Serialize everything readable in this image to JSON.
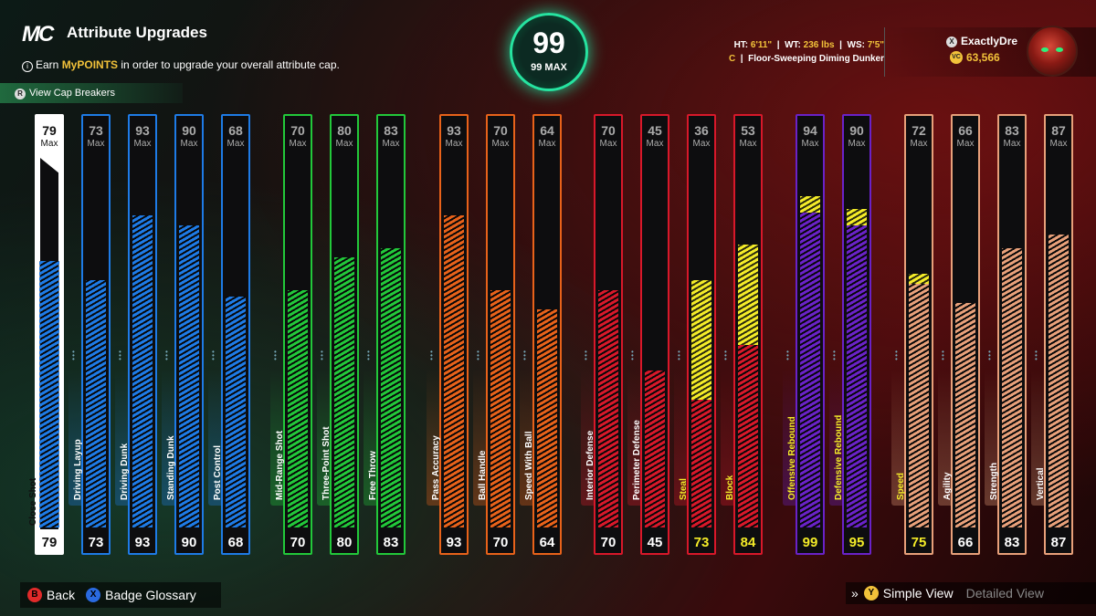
{
  "header": {
    "logo": "MC",
    "title": "Attribute Upgrades",
    "subtitle_pre": "Earn ",
    "subtitle_hl": "MyPOINTS",
    "subtitle_post": " in order to upgrade your overall attribute cap.",
    "cap_breakers": "View Cap Breakers"
  },
  "overall": {
    "value": "99",
    "max_label": "99 MAX"
  },
  "player": {
    "ht_label": "HT:",
    "ht": "6'11\"",
    "wt_label": "WT:",
    "wt": "236 lbs",
    "ws_label": "WS:",
    "ws": "7'5\"",
    "position": "C",
    "archetype": "Floor-Sweeping Diming Dunker",
    "gamertag": "ExactlyDre",
    "vc": "63,566"
  },
  "max_label": "Max",
  "attributes": [
    {
      "name": "Close Shot",
      "cap": 79,
      "current": 79,
      "upgraded": 79,
      "color": "#ffffff",
      "selected": true
    },
    {
      "name": "Driving Layup",
      "cap": 73,
      "current": 73,
      "upgraded": 73,
      "color": "#1e7be6"
    },
    {
      "name": "Driving Dunk",
      "cap": 93,
      "current": 93,
      "upgraded": 93,
      "color": "#1e7be6"
    },
    {
      "name": "Standing Dunk",
      "cap": 90,
      "current": 90,
      "upgraded": 90,
      "color": "#1e7be6"
    },
    {
      "name": "Post Control",
      "cap": 68,
      "current": 68,
      "upgraded": 68,
      "color": "#1e7be6"
    },
    {
      "name": "Mid-Range Shot",
      "cap": 70,
      "current": 70,
      "upgraded": 70,
      "color": "#22c83a"
    },
    {
      "name": "Three-Point Shot",
      "cap": 80,
      "current": 80,
      "upgraded": 80,
      "color": "#22c83a"
    },
    {
      "name": "Free Throw",
      "cap": 83,
      "current": 83,
      "upgraded": 83,
      "color": "#22c83a"
    },
    {
      "name": "Pass Accuracy",
      "cap": 93,
      "current": 93,
      "upgraded": 93,
      "color": "#e8621a"
    },
    {
      "name": "Ball Handle",
      "cap": 70,
      "current": 70,
      "upgraded": 70,
      "color": "#e8621a"
    },
    {
      "name": "Speed With Ball",
      "cap": 64,
      "current": 64,
      "upgraded": 64,
      "color": "#e8621a"
    },
    {
      "name": "Interior Defense",
      "cap": 70,
      "current": 70,
      "upgraded": 70,
      "color": "#d8182a"
    },
    {
      "name": "Perimeter Defense",
      "cap": 45,
      "current": 45,
      "upgraded": 45,
      "color": "#d8182a"
    },
    {
      "name": "Steal",
      "cap": 36,
      "current": 36,
      "upgraded": 73,
      "color": "#d8182a"
    },
    {
      "name": "Block",
      "cap": 53,
      "current": 53,
      "upgraded": 84,
      "color": "#d8182a"
    },
    {
      "name": "Offensive Rebound",
      "cap": 94,
      "current": 94,
      "upgraded": 99,
      "color": "#6a22c8"
    },
    {
      "name": "Defensive Rebound",
      "cap": 90,
      "current": 90,
      "upgraded": 95,
      "color": "#6a22c8"
    },
    {
      "name": "Speed",
      "cap": 72,
      "current": 72,
      "upgraded": 75,
      "color": "#e8a07a"
    },
    {
      "name": "Agility",
      "cap": 66,
      "current": 66,
      "upgraded": 66,
      "color": "#e8a07a"
    },
    {
      "name": "Strength",
      "cap": 83,
      "current": 83,
      "upgraded": 83,
      "color": "#e8a07a"
    },
    {
      "name": "Vertical",
      "cap": 87,
      "current": 87,
      "upgraded": 87,
      "color": "#e8a07a"
    }
  ],
  "footer": {
    "back_btn": "B",
    "back": "Back",
    "glossary_btn": "X",
    "glossary": "Badge Glossary",
    "simple_btn": "Y",
    "simple": "Simple View",
    "detailed": "Detailed View"
  },
  "highlight_color": "#f4ec28"
}
